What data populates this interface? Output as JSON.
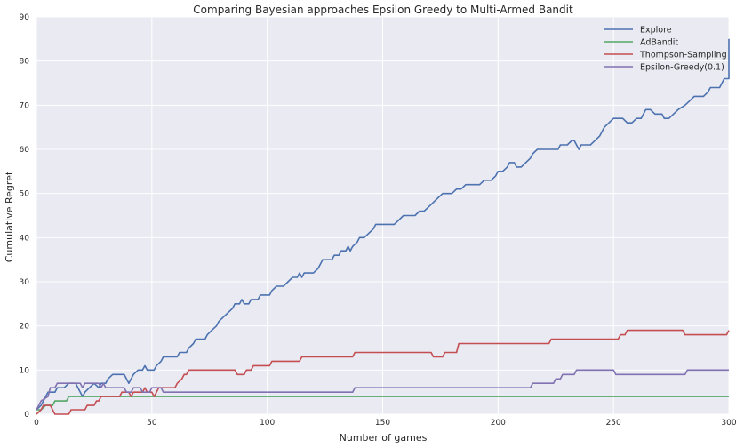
{
  "chart_data": {
    "type": "line",
    "title": "Comparing Bayesian approaches Epsilon Greedy to Multi-Armed Bandit",
    "xlabel": "Number of games",
    "ylabel": "Cumulative Regret",
    "xlim": [
      0,
      300
    ],
    "ylim": [
      0,
      90
    ],
    "xticks": [
      0,
      50,
      100,
      150,
      200,
      250,
      300
    ],
    "yticks": [
      0,
      10,
      20,
      30,
      40,
      50,
      60,
      70,
      80,
      90
    ],
    "grid": true,
    "legend": "top-right",
    "background": "#eaeaf2",
    "series": [
      {
        "name": "Explore",
        "color": "#4c72b0",
        "points": [
          [
            0,
            1
          ],
          [
            2,
            2
          ],
          [
            4,
            4
          ],
          [
            5,
            5
          ],
          [
            8,
            5
          ],
          [
            9,
            6
          ],
          [
            12,
            6
          ],
          [
            14,
            7
          ],
          [
            17,
            7
          ],
          [
            19,
            5
          ],
          [
            20,
            4
          ],
          [
            21,
            5
          ],
          [
            23,
            6
          ],
          [
            25,
            7
          ],
          [
            27,
            6
          ],
          [
            28,
            7
          ],
          [
            30,
            7
          ],
          [
            31,
            8
          ],
          [
            33,
            9
          ],
          [
            38,
            9
          ],
          [
            39,
            8
          ],
          [
            40,
            7
          ],
          [
            41,
            8
          ],
          [
            42,
            9
          ],
          [
            44,
            10
          ],
          [
            46,
            10
          ],
          [
            47,
            11
          ],
          [
            48,
            10
          ],
          [
            51,
            10
          ],
          [
            52,
            11
          ],
          [
            54,
            12
          ],
          [
            55,
            13
          ],
          [
            61,
            13
          ],
          [
            62,
            14
          ],
          [
            65,
            14
          ],
          [
            66,
            15
          ],
          [
            68,
            16
          ],
          [
            69,
            17
          ],
          [
            73,
            17
          ],
          [
            74,
            18
          ],
          [
            76,
            19
          ],
          [
            78,
            20
          ],
          [
            79,
            21
          ],
          [
            81,
            22
          ],
          [
            83,
            23
          ],
          [
            85,
            24
          ],
          [
            86,
            25
          ],
          [
            88,
            25
          ],
          [
            89,
            26
          ],
          [
            90,
            25
          ],
          [
            92,
            25
          ],
          [
            93,
            26
          ],
          [
            96,
            26
          ],
          [
            97,
            27
          ],
          [
            101,
            27
          ],
          [
            102,
            28
          ],
          [
            104,
            29
          ],
          [
            107,
            29
          ],
          [
            109,
            30
          ],
          [
            111,
            31
          ],
          [
            113,
            31
          ],
          [
            114,
            32
          ],
          [
            115,
            31
          ],
          [
            116,
            32
          ],
          [
            120,
            32
          ],
          [
            122,
            33
          ],
          [
            124,
            35
          ],
          [
            128,
            35
          ],
          [
            129,
            36
          ],
          [
            131,
            36
          ],
          [
            132,
            37
          ],
          [
            134,
            37
          ],
          [
            135,
            38
          ],
          [
            136,
            37
          ],
          [
            137,
            38
          ],
          [
            139,
            39
          ],
          [
            140,
            40
          ],
          [
            142,
            40
          ],
          [
            144,
            41
          ],
          [
            146,
            42
          ],
          [
            147,
            43
          ],
          [
            155,
            43
          ],
          [
            157,
            44
          ],
          [
            159,
            45
          ],
          [
            164,
            45
          ],
          [
            166,
            46
          ],
          [
            168,
            46
          ],
          [
            170,
            47
          ],
          [
            172,
            48
          ],
          [
            174,
            49
          ],
          [
            176,
            50
          ],
          [
            180,
            50
          ],
          [
            182,
            51
          ],
          [
            184,
            51
          ],
          [
            186,
            52
          ],
          [
            192,
            52
          ],
          [
            194,
            53
          ],
          [
            197,
            53
          ],
          [
            199,
            54
          ],
          [
            200,
            55
          ],
          [
            202,
            55
          ],
          [
            204,
            56
          ],
          [
            205,
            57
          ],
          [
            207,
            57
          ],
          [
            208,
            56
          ],
          [
            210,
            56
          ],
          [
            212,
            57
          ],
          [
            214,
            58
          ],
          [
            215,
            59
          ],
          [
            217,
            60
          ],
          [
            226,
            60
          ],
          [
            227,
            61
          ],
          [
            230,
            61
          ],
          [
            232,
            62
          ],
          [
            233,
            62
          ],
          [
            235,
            60
          ],
          [
            236,
            61
          ],
          [
            240,
            61
          ],
          [
            242,
            62
          ],
          [
            244,
            63
          ],
          [
            246,
            65
          ],
          [
            248,
            66
          ],
          [
            250,
            67
          ],
          [
            254,
            67
          ],
          [
            256,
            66
          ],
          [
            258,
            66
          ],
          [
            260,
            67
          ],
          [
            262,
            67
          ],
          [
            263,
            68
          ],
          [
            264,
            69
          ],
          [
            266,
            69
          ],
          [
            268,
            68
          ],
          [
            271,
            68
          ],
          [
            272,
            67
          ],
          [
            274,
            67
          ],
          [
            276,
            68
          ],
          [
            278,
            69
          ],
          [
            281,
            70
          ],
          [
            283,
            71
          ],
          [
            285,
            72
          ],
          [
            289,
            72
          ],
          [
            291,
            73
          ],
          [
            292,
            74
          ],
          [
            296,
            74
          ],
          [
            298,
            76
          ],
          [
            301,
            76
          ],
          [
            303,
            77
          ],
          [
            305,
            78
          ],
          [
            306,
            79
          ],
          [
            308,
            80
          ],
          [
            310,
            81
          ],
          [
            312,
            82
          ],
          [
            314,
            83
          ],
          [
            316,
            84
          ],
          [
            318,
            85
          ],
          [
            319,
            85
          ]
        ]
      },
      {
        "name": "AdBandit",
        "color": "#55a868",
        "points": [
          [
            0,
            1
          ],
          [
            2,
            1
          ],
          [
            4,
            2
          ],
          [
            7,
            2
          ],
          [
            8,
            3
          ],
          [
            13,
            3
          ],
          [
            14,
            4
          ],
          [
            300,
            4
          ]
        ]
      },
      {
        "name": "Thompson-Sampling",
        "color": "#c44e52",
        "points": [
          [
            0,
            0
          ],
          [
            2,
            1
          ],
          [
            3,
            2
          ],
          [
            6,
            2
          ],
          [
            7,
            1
          ],
          [
            8,
            0
          ],
          [
            14,
            0
          ],
          [
            15,
            1
          ],
          [
            21,
            1
          ],
          [
            22,
            2
          ],
          [
            25,
            2
          ],
          [
            26,
            3
          ],
          [
            27,
            3
          ],
          [
            28,
            4
          ],
          [
            36,
            4
          ],
          [
            37,
            5
          ],
          [
            40,
            5
          ],
          [
            41,
            4
          ],
          [
            42,
            5
          ],
          [
            46,
            5
          ],
          [
            47,
            6
          ],
          [
            48,
            5
          ],
          [
            50,
            5
          ],
          [
            51,
            4
          ],
          [
            52,
            5
          ],
          [
            53,
            6
          ],
          [
            60,
            6
          ],
          [
            61,
            7
          ],
          [
            63,
            8
          ],
          [
            64,
            9
          ],
          [
            65,
            9
          ],
          [
            66,
            10
          ],
          [
            86,
            10
          ],
          [
            87,
            9
          ],
          [
            90,
            9
          ],
          [
            91,
            10
          ],
          [
            93,
            10
          ],
          [
            94,
            11
          ],
          [
            101,
            11
          ],
          [
            102,
            12
          ],
          [
            114,
            12
          ],
          [
            115,
            13
          ],
          [
            137,
            13
          ],
          [
            138,
            14
          ],
          [
            171,
            14
          ],
          [
            172,
            13
          ],
          [
            176,
            13
          ],
          [
            177,
            14
          ],
          [
            182,
            14
          ],
          [
            183,
            16
          ],
          [
            222,
            16
          ],
          [
            223,
            17
          ],
          [
            252,
            17
          ],
          [
            253,
            18
          ],
          [
            255,
            18
          ],
          [
            256,
            19
          ],
          [
            280,
            19
          ],
          [
            281,
            18
          ],
          [
            299,
            18
          ],
          [
            300,
            19
          ]
        ]
      },
      {
        "name": "Epsilon-Greedy(0.1)",
        "color": "#8172b2",
        "points": [
          [
            0,
            1
          ],
          [
            2,
            3
          ],
          [
            5,
            4
          ],
          [
            6,
            6
          ],
          [
            8,
            6
          ],
          [
            9,
            7
          ],
          [
            19,
            7
          ],
          [
            20,
            6
          ],
          [
            21,
            7
          ],
          [
            27,
            7
          ],
          [
            28,
            6
          ],
          [
            29,
            7
          ],
          [
            30,
            6
          ],
          [
            36,
            6
          ],
          [
            38,
            6
          ],
          [
            39,
            5
          ],
          [
            41,
            5
          ],
          [
            42,
            6
          ],
          [
            45,
            6
          ],
          [
            46,
            5
          ],
          [
            49,
            5
          ],
          [
            50,
            6
          ],
          [
            54,
            6
          ],
          [
            55,
            5
          ],
          [
            137,
            5
          ],
          [
            138,
            6
          ],
          [
            214,
            6
          ],
          [
            215,
            7
          ],
          [
            224,
            7
          ],
          [
            225,
            8
          ],
          [
            227,
            8
          ],
          [
            228,
            9
          ],
          [
            233,
            9
          ],
          [
            234,
            10
          ],
          [
            250,
            10
          ],
          [
            251,
            9
          ],
          [
            281,
            9
          ],
          [
            282,
            10
          ],
          [
            300,
            10
          ]
        ]
      }
    ]
  }
}
